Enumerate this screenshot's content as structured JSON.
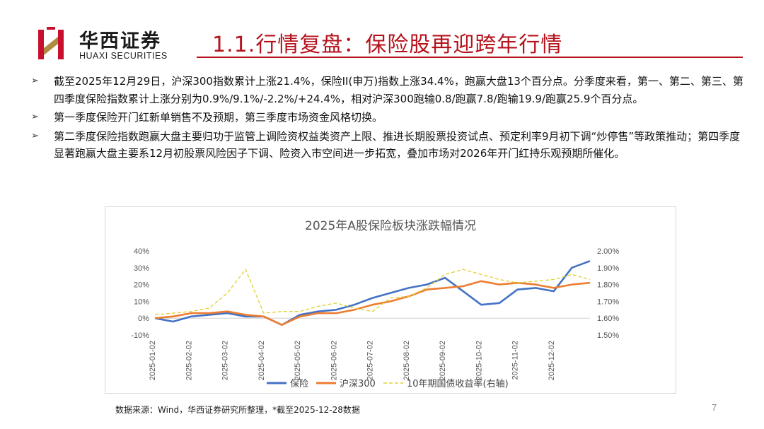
{
  "logo": {
    "cn": "华西证券",
    "en": "HUAXI SECURITIES",
    "colors": {
      "red": "#c8102e",
      "gold": "#b08a3e"
    }
  },
  "title": "1.1.行情复盘：保险股再迎跨年行情",
  "bullets": [
    "截至2025年12月29日，沪深300指数累计上涨21.4%，保险II(申万)指数上涨34.4%，跑赢大盘13个百分点。分季度来看，第一、第二、第三、第四季度保险指数累计上涨分别为0.9%/9.1%/-2.2%/+24.4%，相对沪深300跑输0.8/跑赢7.8/跑输19.9/跑赢25.9个百分点。",
    "第一季度保险开门红新单销售不及预期，第三季度市场资金风格切换。",
    "第二季度保险指数跑赢大盘主要归功于监管上调险资权益类资产上限、推进长期股票投资试点、预定利率9月初下调“炒停售”等政策推动；第四季度显著跑赢大盘主要系12月初股票风险因子下调、险资入市空间进一步拓宽，叠加市场对2026年开门红持乐观预期所催化。"
  ],
  "chart_data": {
    "type": "line",
    "title": "2025年A股保险板块涨跌幅情况",
    "x": [
      "2025-01-02",
      "2025-01-16",
      "2025-02-02",
      "2025-02-16",
      "2025-03-02",
      "2025-03-16",
      "2025-04-02",
      "2025-04-16",
      "2025-05-02",
      "2025-05-16",
      "2025-06-02",
      "2025-06-16",
      "2025-07-02",
      "2025-07-16",
      "2025-08-02",
      "2025-08-16",
      "2025-09-02",
      "2025-09-16",
      "2025-10-02",
      "2025-10-16",
      "2025-11-02",
      "2025-11-16",
      "2025-12-02",
      "2025-12-16",
      "2025-12-28"
    ],
    "x_tick_labels": [
      "2025-01-02",
      "2025-02-02",
      "2025-03-02",
      "2025-04-02",
      "2025-05-02",
      "2025-06-02",
      "2025-07-02",
      "2025-08-02",
      "2025-09-02",
      "2025-10-02",
      "2025-11-02",
      "2025-12-02"
    ],
    "y_left": {
      "ticks": [
        "-10%",
        "0%",
        "10%",
        "20%",
        "30%",
        "40%"
      ],
      "range": [
        -10,
        40
      ]
    },
    "y_right": {
      "ticks": [
        "1.50%",
        "1.60%",
        "1.70%",
        "1.80%",
        "1.90%",
        "2.00%"
      ],
      "range": [
        1.5,
        2.0
      ]
    },
    "series": [
      {
        "name": "保险",
        "axis": "left",
        "color": "#4472c4",
        "values": [
          0,
          -2,
          1,
          2,
          3,
          1,
          1,
          -4,
          2,
          4,
          5,
          8,
          12,
          15,
          18,
          20,
          24,
          16,
          8,
          9,
          17,
          18,
          16,
          30,
          34
        ]
      },
      {
        "name": "沪深300",
        "axis": "left",
        "color": "#ed7d31",
        "values": [
          0,
          1,
          3,
          3,
          4,
          2,
          1,
          -4,
          1,
          3,
          3,
          5,
          8,
          10,
          13,
          17,
          18,
          19,
          22,
          20,
          21,
          20,
          18,
          20,
          21
        ]
      },
      {
        "name": "10年期国债收益率(右轴)",
        "axis": "right",
        "color": "#e3d23a",
        "dashed": true,
        "values": [
          1.62,
          1.63,
          1.64,
          1.66,
          1.75,
          1.89,
          1.63,
          1.64,
          1.64,
          1.67,
          1.69,
          1.66,
          1.64,
          1.72,
          1.73,
          1.78,
          1.86,
          1.89,
          1.86,
          1.83,
          1.81,
          1.82,
          1.83,
          1.86,
          1.83
        ]
      }
    ]
  },
  "source": "数据来源：Wind，华西证券研究所整理，*截至2025-12-28数据",
  "page_number": "7"
}
